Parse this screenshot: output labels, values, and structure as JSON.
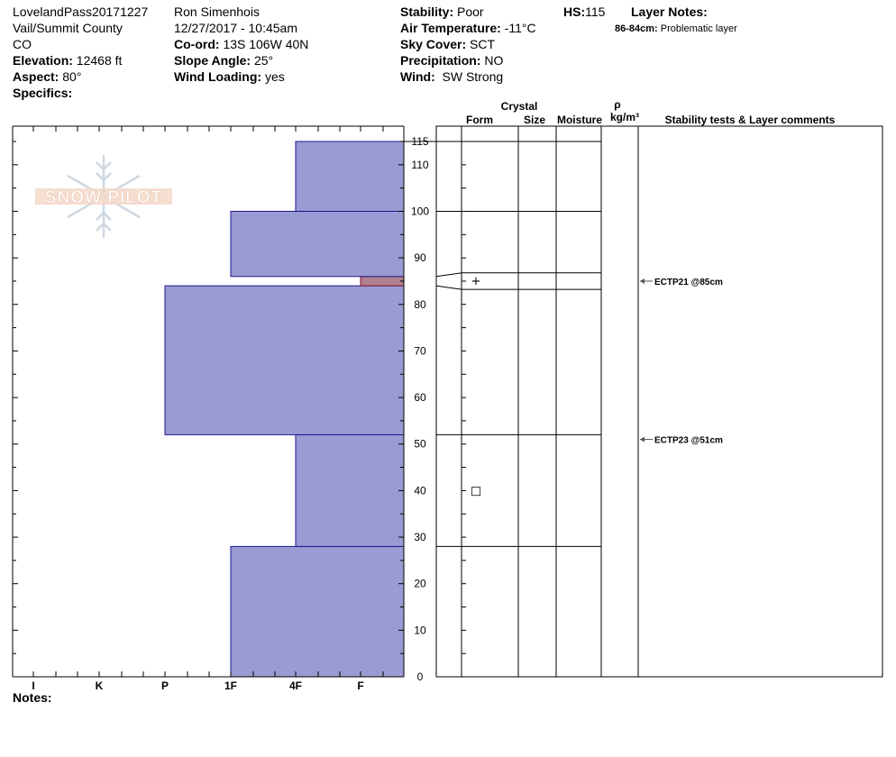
{
  "header": {
    "col1": [
      "LovelandPass20171227",
      "Vail/Summit County",
      "CO"
    ],
    "elevation_label": "Elevation:",
    "elevation_value": "12468 ft",
    "aspect_label": "Aspect:",
    "aspect_value": "80°",
    "specifics_label": "Specifics:",
    "observer": "Ron Simenhois",
    "datetime": "12/27/2017 - 10:45am",
    "coord_label": "Co-ord:",
    "coord_value": "13S 106W 40N",
    "slope_label": "Slope Angle:",
    "slope_value": "25°",
    "wind_loading_label": "Wind Loading:",
    "wind_loading_value": "yes",
    "stability_label": "Stability:",
    "stability_value": "Poor",
    "air_temp_label": "Air Temperature:",
    "air_temp_value": "-11°C",
    "sky_label": "Sky Cover:",
    "sky_value": "SCT",
    "precip_label": "Precipitation:",
    "precip_value": "NO",
    "wind_label": "Wind:",
    "wind_value": "SW Strong",
    "hs_label": "HS:",
    "hs_value": "115",
    "layer_notes_label": "Layer Notes:",
    "layer_note_range": "86-84cm:",
    "layer_note_text": "Problematic layer"
  },
  "logo_text": "SNOW PILOT",
  "columns": {
    "crystal": "Crystal",
    "form": "Form",
    "size": "Size",
    "moisture": "Moisture",
    "rho": "ρ",
    "density_unit": "kg/m³",
    "stability": "Stability tests & Layer comments"
  },
  "notes_label": "Notes:",
  "chart_data": {
    "type": "bar",
    "orientation": "horizontal",
    "y_unit": "cm",
    "ylim": [
      0,
      115
    ],
    "y_ticks": [
      0,
      10,
      20,
      30,
      40,
      50,
      60,
      70,
      80,
      90,
      100,
      110,
      115
    ],
    "hardness_scale": [
      "I",
      "K",
      "P",
      "1F",
      "4F",
      "F"
    ],
    "layers": [
      {
        "bottom": 0,
        "top": 28,
        "hardness": "1F"
      },
      {
        "bottom": 28,
        "top": 52,
        "hardness": "4F"
      },
      {
        "bottom": 52,
        "top": 84,
        "hardness": "P"
      },
      {
        "bottom": 84,
        "top": 86,
        "hardness": "F",
        "problematic": true
      },
      {
        "bottom": 86,
        "top": 100,
        "hardness": "1F"
      },
      {
        "bottom": 100,
        "top": 115,
        "hardness": "4F"
      }
    ],
    "layer_boundaries": [
      0,
      28,
      52,
      84,
      86,
      100,
      115
    ],
    "crystal_forms": [
      {
        "depth": 85,
        "symbol": "+"
      },
      {
        "depth": 40,
        "symbol": "□"
      }
    ],
    "stability_tests": [
      {
        "depth": 85,
        "label": "ECTP21 @85cm"
      },
      {
        "depth": 51,
        "label": "ECTP23 @51cm"
      }
    ]
  }
}
